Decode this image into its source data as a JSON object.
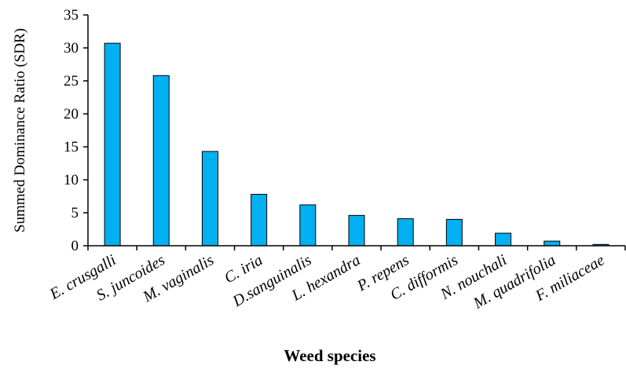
{
  "chart_data": {
    "type": "bar",
    "categories": [
      "E. crusgalli",
      "S. juncoides",
      "M. vaginalis",
      "C. iria",
      "D.sanguinalis",
      "L. hexandra",
      "P. repens",
      "C. difformis",
      "N. nouchali",
      "M. quadrifolia",
      "F. miliaceae"
    ],
    "values": [
      30.7,
      25.8,
      14.3,
      7.8,
      6.2,
      4.6,
      4.1,
      4.0,
      1.9,
      0.7,
      0.2
    ],
    "title": "",
    "xlabel": "Weed species",
    "ylabel": "Summed Dominance Ratio (SDR)",
    "ylim": [
      0,
      35
    ],
    "yticks": [
      0,
      5,
      10,
      15,
      20,
      25,
      30,
      35
    ],
    "grid": false,
    "bar_color": "#00b0f0",
    "bar_edge_color": "#000000"
  }
}
